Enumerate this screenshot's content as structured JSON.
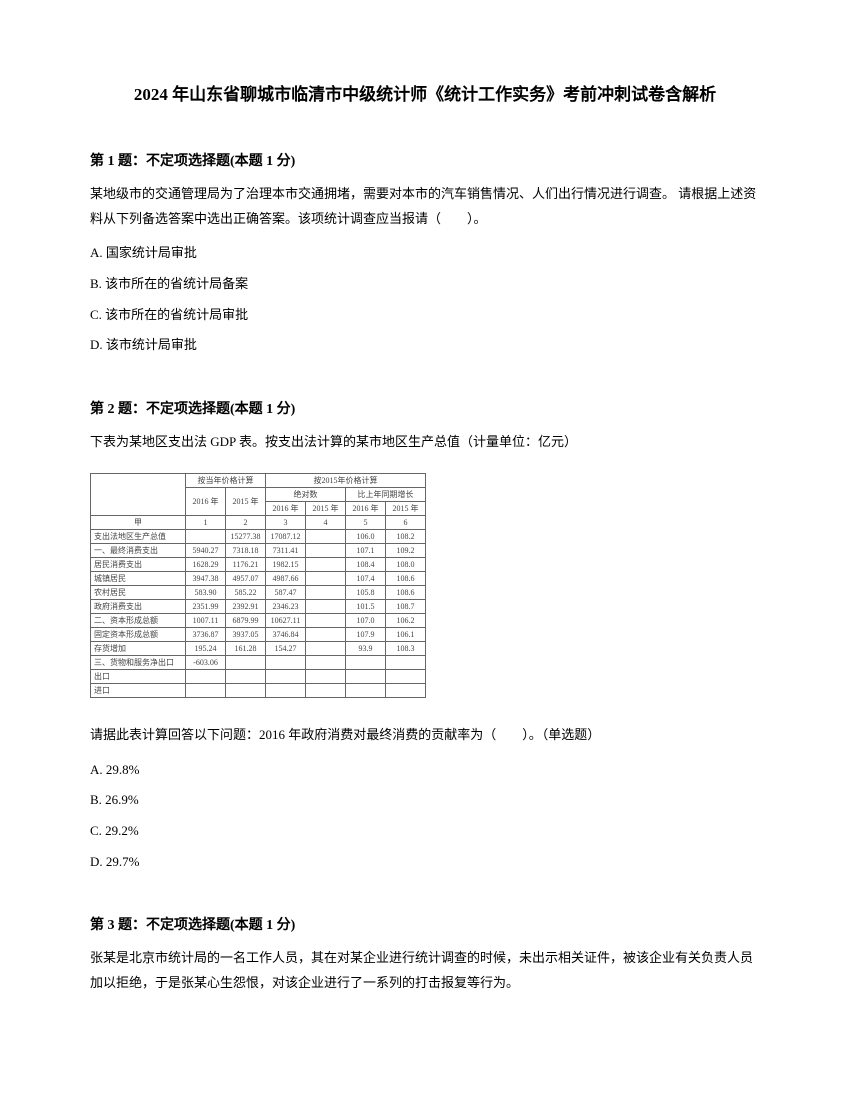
{
  "title": "2024 年山东省聊城市临清市中级统计师《统计工作实务》考前冲刺试卷含解析",
  "q1": {
    "header": "第 1 题：不定项选择题(本题 1 分)",
    "text": "某地级市的交通管理局为了治理本市交通拥堵，需要对本市的汽车销售情况、人们出行情况进行调查。 请根据上述资料从下列备选答案中选出正确答案。该项统计调查应当报请（　　）。",
    "options": {
      "a": "A. 国家统计局审批",
      "b": "B. 该市所在的省统计局备案",
      "c": "C. 该市所在的省统计局审批",
      "d": "D. 该市统计局审批"
    }
  },
  "q2": {
    "header": "第 2 题：不定项选择题(本题 1 分)",
    "text": "下表为某地区支出法 GDP 表。按支出法计算的某市地区生产总值（计量单位：亿元）",
    "table": {
      "headers": {
        "group1": "按当年价格计算",
        "group2": "按2015年价格计算",
        "sub1": "绝对数",
        "sub2": "比上年同期增长",
        "y2016": "2016 年",
        "y2015": "2015 年",
        "y2016b": "2016 年",
        "y2015b": "2015 年",
        "y2016c": "2016 年",
        "y2015c": "2015 年",
        "jia": "甲",
        "n1": "1",
        "n2": "2",
        "n3": "3",
        "n4": "4",
        "n5": "5",
        "n6": "6"
      },
      "rows": [
        {
          "label": "支出法地区生产总值",
          "c1": "",
          "c2": "15277.38",
          "c3": "17087.12",
          "c4": "",
          "c5": "106.0",
          "c6": "108.2"
        },
        {
          "label": "一、最终消费支出",
          "c1": "5940.27",
          "c2": "7318.18",
          "c3": "7311.41",
          "c4": "",
          "c5": "107.1",
          "c6": "109.2"
        },
        {
          "label": "居民消费支出",
          "c1": "1628.29",
          "c2": "1176.21",
          "c3": "1982.15",
          "c4": "",
          "c5": "108.4",
          "c6": "108.0"
        },
        {
          "label": "城镇居民",
          "c1": "3947.38",
          "c2": "4957.07",
          "c3": "4987.66",
          "c4": "",
          "c5": "107.4",
          "c6": "108.6"
        },
        {
          "label": "农村居民",
          "c1": "583.90",
          "c2": "585.22",
          "c3": "587.47",
          "c4": "",
          "c5": "105.8",
          "c6": "108.6"
        },
        {
          "label": "政府消费支出",
          "c1": "2351.99",
          "c2": "2392.91",
          "c3": "2346.23",
          "c4": "",
          "c5": "101.5",
          "c6": "108.7"
        },
        {
          "label": "二、资本形成总额",
          "c1": "1007.11",
          "c2": "6879.99",
          "c3": "10627.11",
          "c4": "",
          "c5": "107.0",
          "c6": "106.2"
        },
        {
          "label": "固定资本形成总额",
          "c1": "3736.87",
          "c2": "3937.05",
          "c3": "3746.84",
          "c4": "",
          "c5": "107.9",
          "c6": "106.1"
        },
        {
          "label": "存货增加",
          "c1": "195.24",
          "c2": "161.28",
          "c3": "154.27",
          "c4": "",
          "c5": "93.9",
          "c6": "108.3"
        },
        {
          "label": "三、货物和服务净出口",
          "c1": "-603.06",
          "c2": "",
          "c3": "",
          "c4": "",
          "c5": "",
          "c6": ""
        },
        {
          "label": "出口",
          "c1": "",
          "c2": "",
          "c3": "",
          "c4": "",
          "c5": "",
          "c6": ""
        },
        {
          "label": "进口",
          "c1": "",
          "c2": "",
          "c3": "",
          "c4": "",
          "c5": "",
          "c6": ""
        }
      ]
    },
    "followup": "请据此表计算回答以下问题：2016 年政府消费对最终消费的贡献率为（　　）。（单选题）",
    "options": {
      "a": "A. 29.8%",
      "b": "B. 26.9%",
      "c": "C. 29.2%",
      "d": "D. 29.7%"
    }
  },
  "q3": {
    "header": "第 3 题：不定项选择题(本题 1 分)",
    "text": "张某是北京市统计局的一名工作人员，其在对某企业进行统计调查的时候，未出示相关证件，被该企业有关负责人员加以拒绝，于是张某心生怨恨，对该企业进行了一系列的打击报复等行为。"
  }
}
